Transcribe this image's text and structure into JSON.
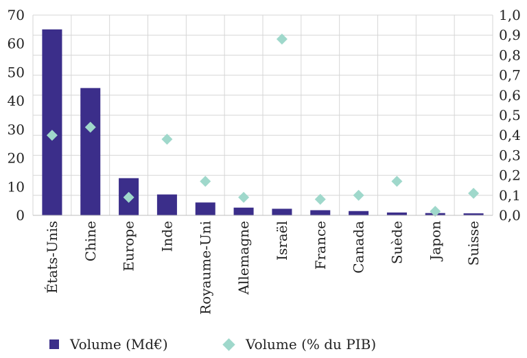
{
  "chart_data": {
    "type": "bar",
    "categories": [
      "États-Unis",
      "Chine",
      "Europe",
      "Inde",
      "Royaume-Uni",
      "Allemagne",
      "Israël",
      "France",
      "Canada",
      "Suède",
      "Japon",
      "Suisse"
    ],
    "series": [
      {
        "name": "Volume (Md€)",
        "type": "bar",
        "axis": "left",
        "color": "#3b2e8a",
        "values": [
          65,
          44.5,
          13,
          7.3,
          4.5,
          2.7,
          2.3,
          1.8,
          1.5,
          1.0,
          0.8,
          0.7
        ]
      },
      {
        "name": "Volume (% du PIB)",
        "type": "scatter",
        "marker": "diamond",
        "axis": "right",
        "color": "#9fd8cb",
        "values": [
          0.4,
          0.44,
          0.09,
          0.38,
          0.17,
          0.09,
          0.88,
          0.08,
          0.1,
          0.17,
          0.02,
          0.11
        ]
      }
    ],
    "y_left": {
      "min": 0,
      "max": 70,
      "ticks": [
        "0",
        "10",
        "20",
        "30",
        "40",
        "50",
        "60",
        "70"
      ]
    },
    "y_right": {
      "min": 0,
      "max": 1.0,
      "ticks": [
        "0,0",
        "0,1",
        "0,2",
        "0,3",
        "0,4",
        "0,5",
        "0,6",
        "0,7",
        "0,8",
        "0,9",
        "1,0"
      ]
    },
    "grid": {
      "x": true,
      "y": true
    },
    "legend_position": "bottom-left"
  }
}
